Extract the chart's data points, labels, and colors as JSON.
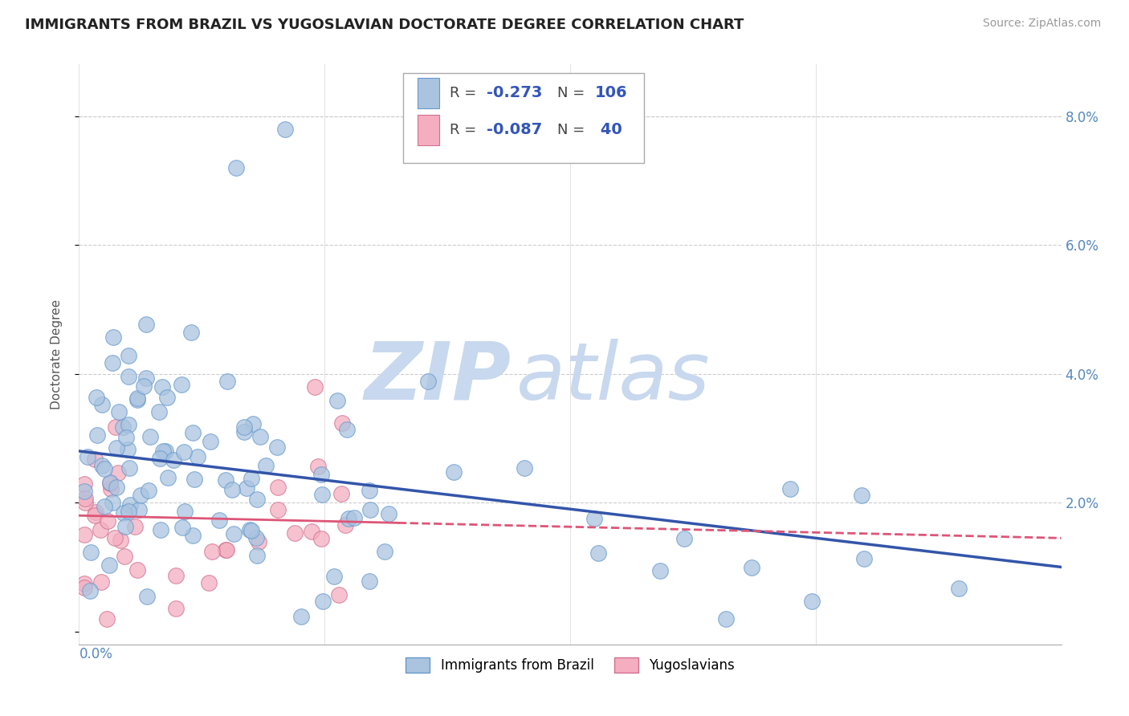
{
  "title": "IMMIGRANTS FROM BRAZIL VS YUGOSLAVIAN DOCTORATE DEGREE CORRELATION CHART",
  "source": "Source: ZipAtlas.com",
  "ylabel": "Doctorate Degree",
  "legend1_R": "-0.273",
  "legend1_N": "106",
  "legend2_R": "-0.087",
  "legend2_N": "40",
  "brazil_color": "#aac4e0",
  "brazil_edge_color": "#6699cc",
  "yugoslav_color": "#f4aec0",
  "yugoslav_edge_color": "#d07090",
  "brazil_line_color": "#3355aa",
  "yugoslav_line_color": "#dd5577",
  "watermark_zip_color": "#c8d8ee",
  "watermark_atlas_color": "#c8d8ee",
  "xlim": [
    0.0,
    0.2
  ],
  "ylim": [
    -0.002,
    0.088
  ],
  "yticks": [
    0.0,
    0.02,
    0.04,
    0.06,
    0.08
  ],
  "ytick_labels": [
    "",
    "2.0%",
    "4.0%",
    "6.0%",
    "8.0%"
  ],
  "xtick_positions": [
    0.0,
    0.05,
    0.1,
    0.15,
    0.2
  ],
  "title_fontsize": 13,
  "tick_fontsize": 12,
  "source_fontsize": 10,
  "ylabel_fontsize": 11
}
